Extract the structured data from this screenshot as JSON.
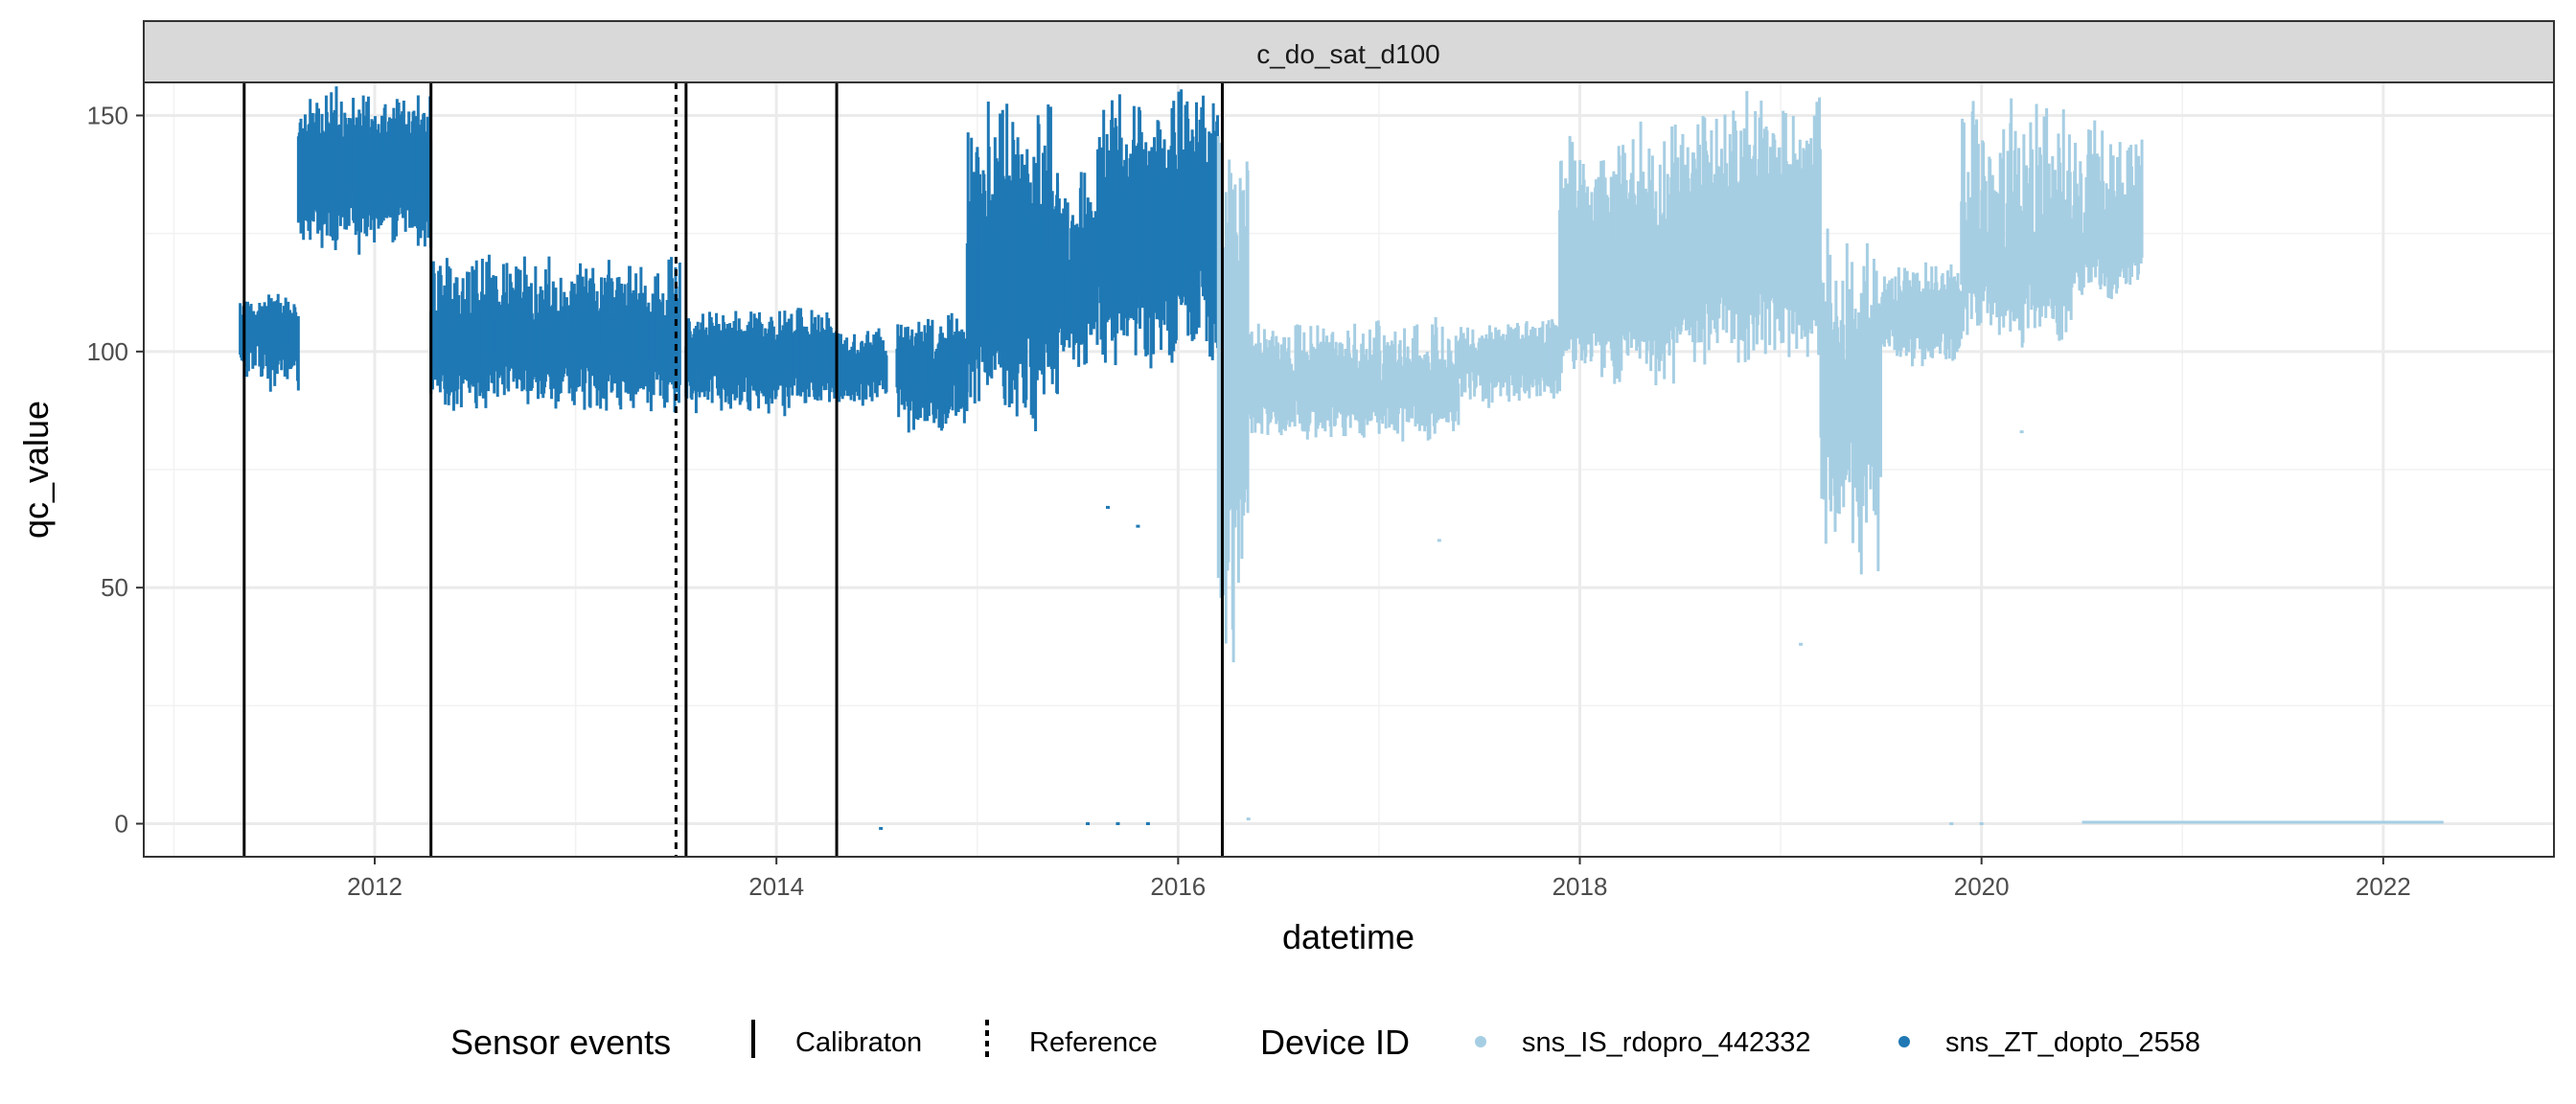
{
  "chart_data": {
    "type": "scatter",
    "facet_label": "c_do_sat_d100",
    "xlabel": "datetime",
    "ylabel": "qc_value",
    "xlim": [
      2010.85,
      2022.85
    ],
    "ylim": [
      -7,
      157
    ],
    "x_ticks": [
      2012,
      2014,
      2016,
      2018,
      2020,
      2022
    ],
    "y_ticks": [
      0,
      50,
      100,
      150
    ],
    "grid": true,
    "legend_position": "bottom",
    "colors": {
      "sns_IS_rdopro_442332": "#a6cee3",
      "sns_ZT_dopto_2558": "#1f78b4",
      "event": "#000000"
    },
    "series": [
      {
        "name": "sns_ZT_dopto_2558",
        "color": "#1f78b4",
        "segments": [
          {
            "x_start": 2011.33,
            "x_end": 2011.62,
            "lo": [
              90,
              102
            ],
            "hi": [
              108,
              113
            ]
          },
          {
            "x_start": 2011.62,
            "x_end": 2012.28,
            "lo": [
              120,
              128
            ],
            "hi": [
              148,
              157
            ]
          },
          {
            "x_start": 2012.28,
            "x_end": 2013.52,
            "lo": [
              86,
              94
            ],
            "hi": [
              108,
              122
            ]
          },
          {
            "x_start": 2013.55,
            "x_end": 2014.3,
            "lo": [
              86,
              94
            ],
            "hi": [
              104,
              110
            ]
          },
          {
            "x_start": 2014.3,
            "x_end": 2014.55,
            "lo": [
              88,
              94
            ],
            "hi": [
              100,
              106
            ]
          },
          {
            "x_start": 2014.6,
            "x_end": 2014.95,
            "lo": [
              80,
              92
            ],
            "hi": [
              102,
              110
            ]
          },
          {
            "x_start": 2014.95,
            "x_end": 2015.4,
            "lo": [
              82,
              96
            ],
            "hi": [
              130,
              157
            ]
          },
          {
            "x_start": 2015.4,
            "x_end": 2015.6,
            "lo": [
              95,
              105
            ],
            "hi": [
              120,
              140
            ]
          },
          {
            "x_start": 2015.6,
            "x_end": 2016.2,
            "lo": [
              95,
              110
            ],
            "hi": [
              140,
              157
            ]
          }
        ],
        "points": [
          [
            2014.52,
            -1
          ],
          [
            2015.55,
            0
          ],
          [
            2015.7,
            0
          ],
          [
            2015.85,
            0
          ],
          [
            2015.65,
            67
          ],
          [
            2015.8,
            63
          ]
        ]
      },
      {
        "name": "sns_IS_rdopro_442332",
        "color": "#a6cee3",
        "segments": [
          {
            "x_start": 2016.2,
            "x_end": 2016.35,
            "lo": [
              30,
              80
            ],
            "hi": [
              120,
              157
            ]
          },
          {
            "x_start": 2016.35,
            "x_end": 2017.4,
            "lo": [
              80,
              88
            ],
            "hi": [
              95,
              108
            ]
          },
          {
            "x_start": 2017.4,
            "x_end": 2017.9,
            "lo": [
              88,
              95
            ],
            "hi": [
              100,
              108
            ]
          },
          {
            "x_start": 2017.9,
            "x_end": 2018.5,
            "lo": [
              92,
              100
            ],
            "hi": [
              125,
              150
            ]
          },
          {
            "x_start": 2018.5,
            "x_end": 2019.2,
            "lo": [
              95,
              105
            ],
            "hi": [
              135,
              157
            ]
          },
          {
            "x_start": 2019.2,
            "x_end": 2019.5,
            "lo": [
              50,
              80
            ],
            "hi": [
              100,
              130
            ]
          },
          {
            "x_start": 2019.5,
            "x_end": 2019.9,
            "lo": [
              95,
              105
            ],
            "hi": [
              110,
              120
            ]
          },
          {
            "x_start": 2019.9,
            "x_end": 2020.45,
            "lo": [
              100,
              110
            ],
            "hi": [
              120,
              157
            ]
          },
          {
            "x_start": 2020.45,
            "x_end": 2020.8,
            "lo": [
              110,
              118
            ],
            "hi": [
              125,
              150
            ]
          }
        ],
        "points": [
          [
            2019.1,
            38
          ],
          [
            2020.2,
            83
          ],
          [
            2016.35,
            1
          ],
          [
            2017.3,
            60
          ],
          [
            2019.85,
            0
          ],
          [
            2020.0,
            0
          ]
        ],
        "flat_segments": [
          [
            2020.5,
            2022.3,
            0.3
          ]
        ]
      }
    ],
    "events": [
      {
        "x": 2011.35,
        "type": "Calibraton"
      },
      {
        "x": 2012.28,
        "type": "Calibraton"
      },
      {
        "x": 2013.5,
        "type": "Reference"
      },
      {
        "x": 2013.55,
        "type": "Calibraton"
      },
      {
        "x": 2014.3,
        "type": "Calibraton"
      },
      {
        "x": 2016.22,
        "type": "Calibraton"
      }
    ]
  },
  "legend": {
    "events_title": "Sensor events",
    "events_items": [
      "Calibraton",
      "Reference"
    ],
    "device_title": "Device ID",
    "device_items": [
      "sns_IS_rdopro_442332",
      "sns_ZT_dopto_2558"
    ]
  }
}
